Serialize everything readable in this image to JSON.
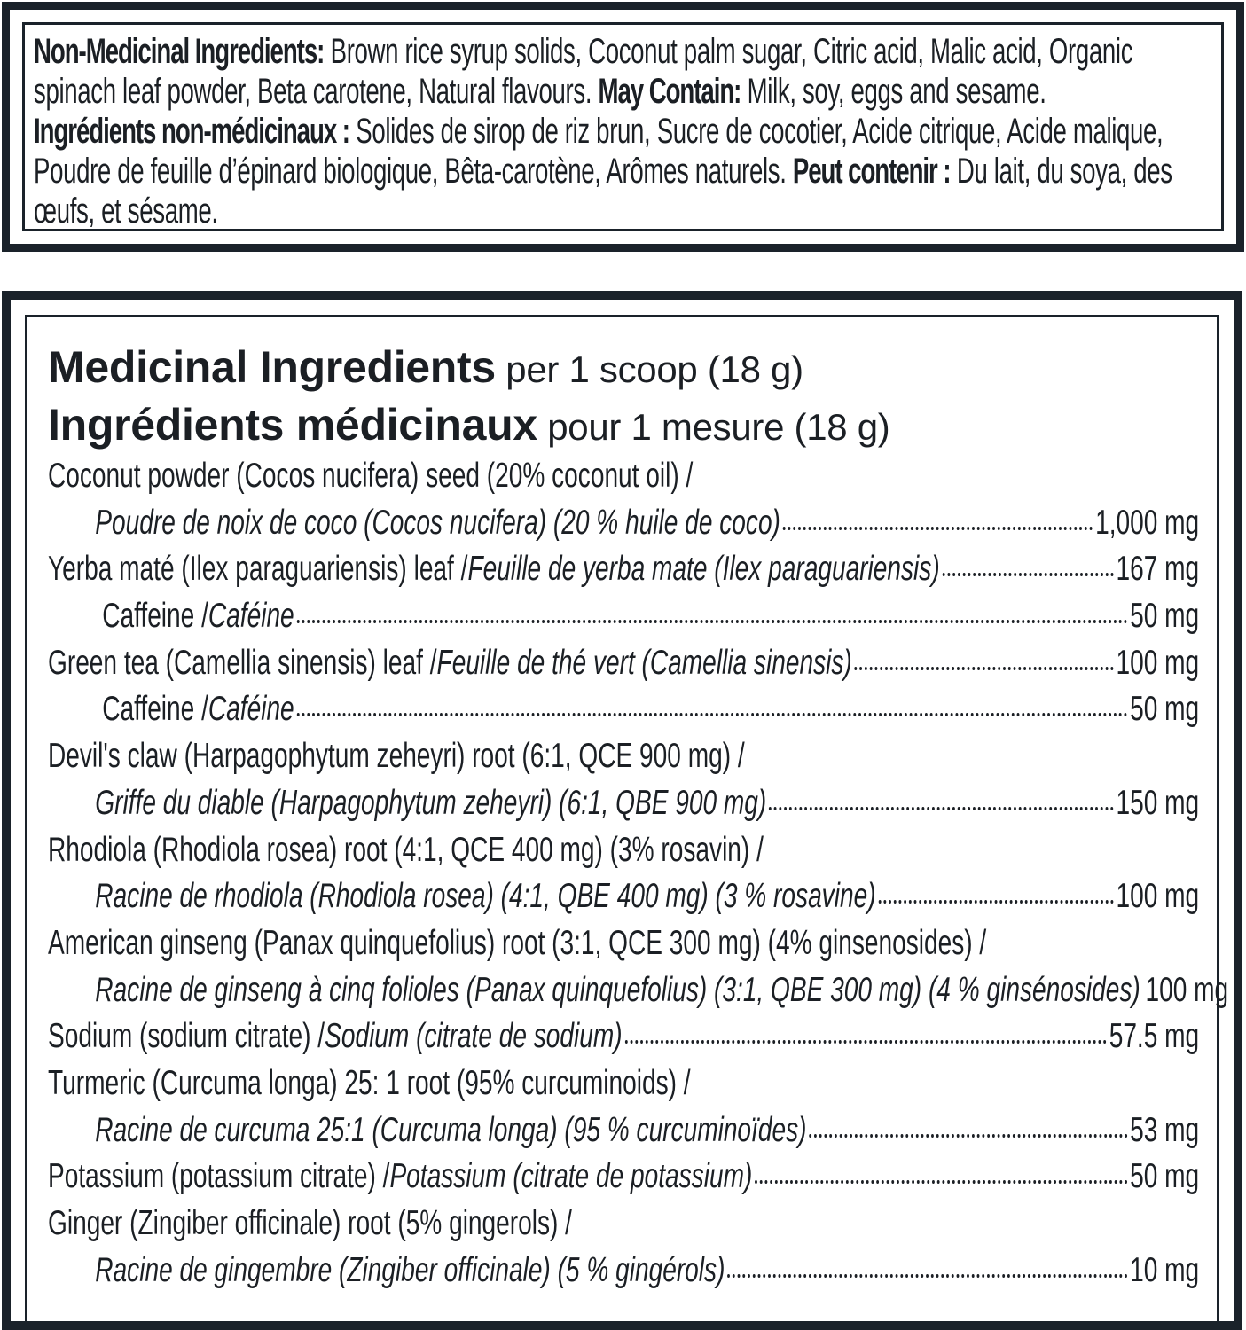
{
  "non_medicinal": {
    "en_label": "Non-Medicinal Ingredients:",
    "en_text": " Brown rice syrup solids, Coconut palm sugar, Citric acid, Malic acid, Organic spinach leaf powder, Beta carotene, Natural flavours. ",
    "en_may_label": "May Contain:",
    "en_may_text": " Milk, soy, eggs and sesame.",
    "fr_label": "Ingrédients non-médicinaux :",
    "fr_text": " Solides de sirop de riz brun, Sucre de cocotier, Acide citrique, Acide malique, Poudre de feuille d’épinard biologique, Bêta-carotène, Arômes naturels. ",
    "fr_may_label": "Peut contenir :",
    "fr_may_text": " Du lait, du soya, des œufs, et sésame."
  },
  "medicinal": {
    "title_en": "Medicinal Ingredients",
    "serving_en": " per 1 scoop (18 g)",
    "title_fr": "Ingrédients médicinaux",
    "serving_fr": " pour 1 mesure (18 g)",
    "rows": [
      {
        "kind": "item",
        "en": "Coconut powder (Cocos nucifera) seed (20% coconut oil) /",
        "fr": "",
        "value": ""
      },
      {
        "kind": "continuation",
        "en": "",
        "fr": "Poudre de noix de coco (Cocos nucifera) (20 % huile de coco)",
        "value": "1,000 mg"
      },
      {
        "kind": "item",
        "en": "Yerba maté (Ilex paraguariensis) leaf / ",
        "fr": "Feuille de yerba mate (Ilex paraguariensis)",
        "value": "167 mg"
      },
      {
        "kind": "sub-item",
        "en": "Caffeine / ",
        "fr": "Caféine",
        "value": "50 mg"
      },
      {
        "kind": "item",
        "en": "Green tea (Camellia sinensis) leaf  / ",
        "fr": "Feuille de thé vert (Camellia sinensis)",
        "value": "100 mg"
      },
      {
        "kind": "sub-item",
        "en": "Caffeine / ",
        "fr": "Caféine",
        "value": "50 mg"
      },
      {
        "kind": "item",
        "en": "Devil's claw (Harpagophytum zeheyri) root (6:1, QCE 900 mg) /",
        "fr": "",
        "value": ""
      },
      {
        "kind": "continuation",
        "en": "",
        "fr": "Griffe du diable (Harpagophytum zeheyri) (6:1, QBE 900 mg)",
        "value": "150 mg"
      },
      {
        "kind": "item",
        "en": "Rhodiola (Rhodiola rosea) root (4:1, QCE 400 mg) (3% rosavin) /",
        "fr": "",
        "value": ""
      },
      {
        "kind": "continuation",
        "en": "",
        "fr": "Racine de rhodiola (Rhodiola rosea) (4:1, QBE 400 mg) (3 % rosavine)",
        "value": "100 mg"
      },
      {
        "kind": "item",
        "en": "American ginseng (Panax quinquefolius) root (3:1, QCE 300 mg) (4% ginsenosides) /",
        "fr": "",
        "value": ""
      },
      {
        "kind": "continuation",
        "en": "",
        "fr": "Racine de ginseng à cinq folioles (Panax quinquefolius) (3:1, QBE 300 mg) (4 % ginsénosides)",
        "value": "100 mg"
      },
      {
        "kind": "item",
        "en": "Sodium (sodium citrate) / ",
        "fr": "Sodium (citrate de sodium)",
        "value": "57.5 mg"
      },
      {
        "kind": "item",
        "en": "Turmeric (Curcuma longa) 25: 1 root (95% curcuminoids) /",
        "fr": "",
        "value": ""
      },
      {
        "kind": "continuation",
        "en": "",
        "fr": "Racine de curcuma 25:1 (Curcuma longa) (95 % curcuminoïdes)",
        "value": "53 mg"
      },
      {
        "kind": "item",
        "en": "Potassium (potassium citrate) / ",
        "fr": "Potassium (citrate de potassium)",
        "value": "50 mg"
      },
      {
        "kind": "item",
        "en": "Ginger (Zingiber officinale) root (5% gingerols) /",
        "fr": "",
        "value": ""
      },
      {
        "kind": "continuation",
        "en": "",
        "fr": "Racine de gingembre (Zingiber officinale) (5 % gingérols)",
        "value": "10 mg"
      }
    ]
  }
}
